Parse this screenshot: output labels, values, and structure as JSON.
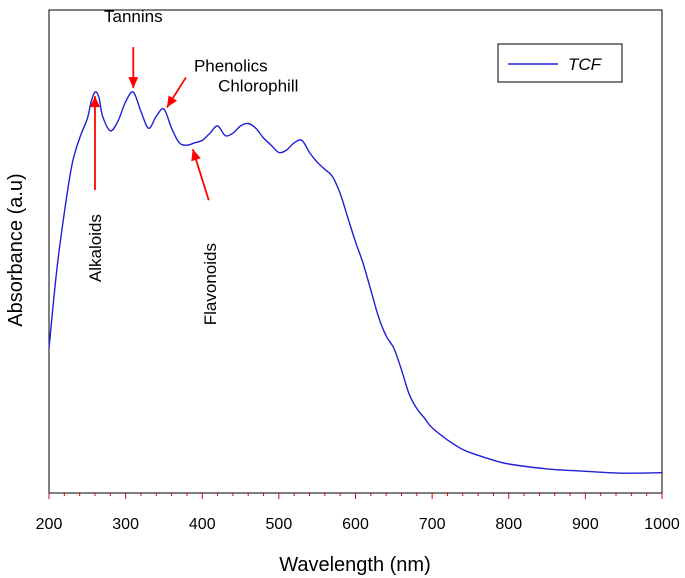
{
  "chart_data": {
    "type": "line",
    "title": "",
    "xlabel": "Wavelength (nm)",
    "ylabel": "Absorbance (a.u)",
    "xlim": [
      200,
      1000
    ],
    "ylim": [
      0,
      1.0
    ],
    "x_ticks": [
      200,
      300,
      400,
      500,
      600,
      700,
      800,
      900,
      1000
    ],
    "y_ticks_shown": false,
    "legend": {
      "position": "top-right",
      "entries": [
        "TCF"
      ]
    },
    "series": [
      {
        "name": "TCF",
        "color": "#1f1fd6",
        "x": [
          200,
          210,
          220,
          230,
          240,
          250,
          255,
          260,
          265,
          270,
          280,
          290,
          300,
          310,
          320,
          330,
          340,
          350,
          360,
          370,
          380,
          390,
          400,
          410,
          420,
          430,
          440,
          450,
          460,
          470,
          480,
          490,
          500,
          510,
          520,
          530,
          540,
          550,
          560,
          570,
          580,
          590,
          600,
          610,
          620,
          630,
          640,
          650,
          660,
          670,
          680,
          690,
          700,
          720,
          740,
          760,
          780,
          800,
          850,
          900,
          950,
          1000
        ],
        "values": [
          0.3,
          0.46,
          0.58,
          0.68,
          0.735,
          0.775,
          0.81,
          0.83,
          0.82,
          0.78,
          0.75,
          0.77,
          0.81,
          0.83,
          0.79,
          0.755,
          0.78,
          0.795,
          0.755,
          0.725,
          0.72,
          0.725,
          0.73,
          0.745,
          0.76,
          0.74,
          0.745,
          0.76,
          0.765,
          0.755,
          0.735,
          0.72,
          0.705,
          0.71,
          0.725,
          0.73,
          0.705,
          0.685,
          0.67,
          0.655,
          0.62,
          0.57,
          0.52,
          0.475,
          0.42,
          0.365,
          0.325,
          0.3,
          0.255,
          0.205,
          0.175,
          0.155,
          0.135,
          0.11,
          0.09,
          0.078,
          0.068,
          0.06,
          0.05,
          0.045,
          0.041,
          0.042
        ]
      }
    ],
    "annotations": [
      {
        "label": "Alkaloids",
        "x": 260,
        "y": 0.83,
        "text_orientation": "vertical",
        "text_position": "below"
      },
      {
        "label": "Tannins",
        "x": 310,
        "y": 0.83,
        "text_orientation": "horizontal",
        "text_position": "above"
      },
      {
        "label": "Phenolics",
        "x": 350,
        "y": 0.79,
        "text_orientation": "horizontal",
        "text_position": "above-right"
      },
      {
        "label": "Flavonoids",
        "x": 385,
        "y": 0.72,
        "text_orientation": "vertical",
        "text_position": "below-right"
      },
      {
        "label": "Chlorophill",
        "x": 460,
        "y": 0.765,
        "text_orientation": "horizontal",
        "text_position": "above"
      }
    ],
    "annotation_color": "#ff0000"
  }
}
